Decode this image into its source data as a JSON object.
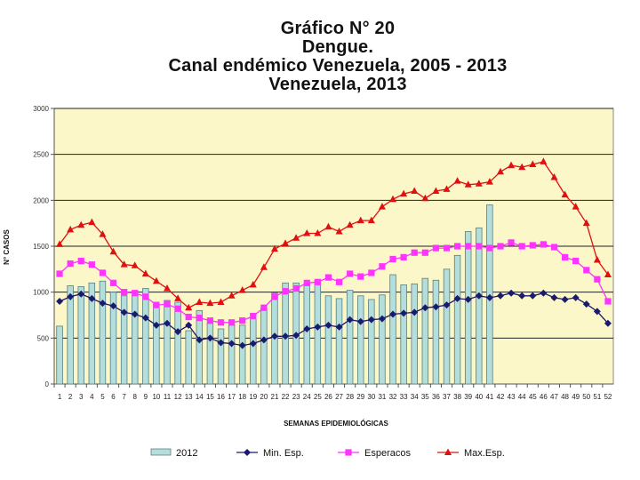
{
  "title_lines": [
    "Gráfico  N° 20",
    "Dengue.",
    "Canal endémico  Venezuela, 2005 - 2013",
    "Venezuela, 2013"
  ],
  "colors": {
    "plot_bg": "#fbf7c8",
    "bar_fill": "#b3dedb",
    "bar_stroke": "#5a7f80",
    "min": "#1a1a6e",
    "esp": "#ff33ff",
    "max": "#e01010"
  },
  "chart_data": {
    "type": "bar+line",
    "xlabel": "SEMANAS EPIDEMIOLÓGICAS",
    "ylabel": "N° CASOS",
    "ylim": [
      0,
      3000
    ],
    "yticks": [
      0,
      500,
      1000,
      1500,
      2000,
      2500,
      3000
    ],
    "categories": [
      "1",
      "2",
      "3",
      "4",
      "5",
      "6",
      "7",
      "8",
      "9",
      "10",
      "11",
      "12",
      "13",
      "14",
      "15",
      "16",
      "17",
      "18",
      "19",
      "20",
      "21",
      "22",
      "23",
      "24",
      "25",
      "26",
      "27",
      "28",
      "29",
      "30",
      "31",
      "32",
      "33",
      "34",
      "35",
      "36",
      "37",
      "38",
      "39",
      "40",
      "41",
      "42",
      "43",
      "44",
      "45",
      "46",
      "47",
      "48",
      "49",
      "50",
      "51",
      "52"
    ],
    "series": [
      {
        "name": "2012",
        "type": "bar",
        "values": [
          630,
          1070,
          1060,
          1100,
          1120,
          1000,
          960,
          970,
          1040,
          870,
          910,
          890,
          580,
          800,
          660,
          600,
          640,
          640,
          710,
          830,
          990,
          1100,
          1100,
          1090,
          1130,
          960,
          930,
          1020,
          960,
          920,
          970,
          1190,
          1080,
          1090,
          1150,
          1130,
          1250,
          1400,
          1660,
          1700,
          1950,
          null,
          null,
          null,
          null,
          null,
          null,
          null,
          null,
          null,
          null,
          null
        ]
      },
      {
        "name": "Min. Esp.",
        "type": "line",
        "marker": "diamond",
        "values": [
          900,
          950,
          980,
          930,
          880,
          850,
          780,
          760,
          720,
          640,
          660,
          570,
          640,
          480,
          500,
          450,
          440,
          420,
          440,
          480,
          520,
          520,
          530,
          600,
          620,
          640,
          620,
          700,
          680,
          700,
          710,
          760,
          770,
          780,
          830,
          840,
          860,
          930,
          920,
          960,
          940,
          960,
          990,
          960,
          960,
          990,
          940,
          920,
          940,
          870,
          790,
          660
        ]
      },
      {
        "name": "Esperacos",
        "type": "line",
        "marker": "square",
        "values": [
          1200,
          1310,
          1340,
          1300,
          1210,
          1100,
          1000,
          990,
          950,
          860,
          870,
          820,
          730,
          720,
          690,
          670,
          670,
          690,
          740,
          830,
          950,
          1010,
          1040,
          1100,
          1110,
          1160,
          1110,
          1200,
          1170,
          1210,
          1280,
          1360,
          1380,
          1430,
          1430,
          1480,
          1480,
          1500,
          1500,
          1500,
          1480,
          1500,
          1540,
          1500,
          1510,
          1520,
          1490,
          1380,
          1340,
          1240,
          1140,
          900
        ]
      },
      {
        "name": "Max.Esp.",
        "type": "line",
        "marker": "triangle",
        "values": [
          1520,
          1680,
          1730,
          1760,
          1630,
          1440,
          1300,
          1290,
          1200,
          1120,
          1040,
          930,
          830,
          890,
          880,
          890,
          960,
          1020,
          1080,
          1270,
          1470,
          1530,
          1590,
          1640,
          1640,
          1710,
          1660,
          1730,
          1780,
          1780,
          1930,
          2010,
          2070,
          2100,
          2020,
          2100,
          2120,
          2210,
          2170,
          2180,
          2200,
          2310,
          2380,
          2360,
          2390,
          2420,
          2250,
          2060,
          1930,
          1750,
          1350,
          1190
        ]
      }
    ]
  }
}
